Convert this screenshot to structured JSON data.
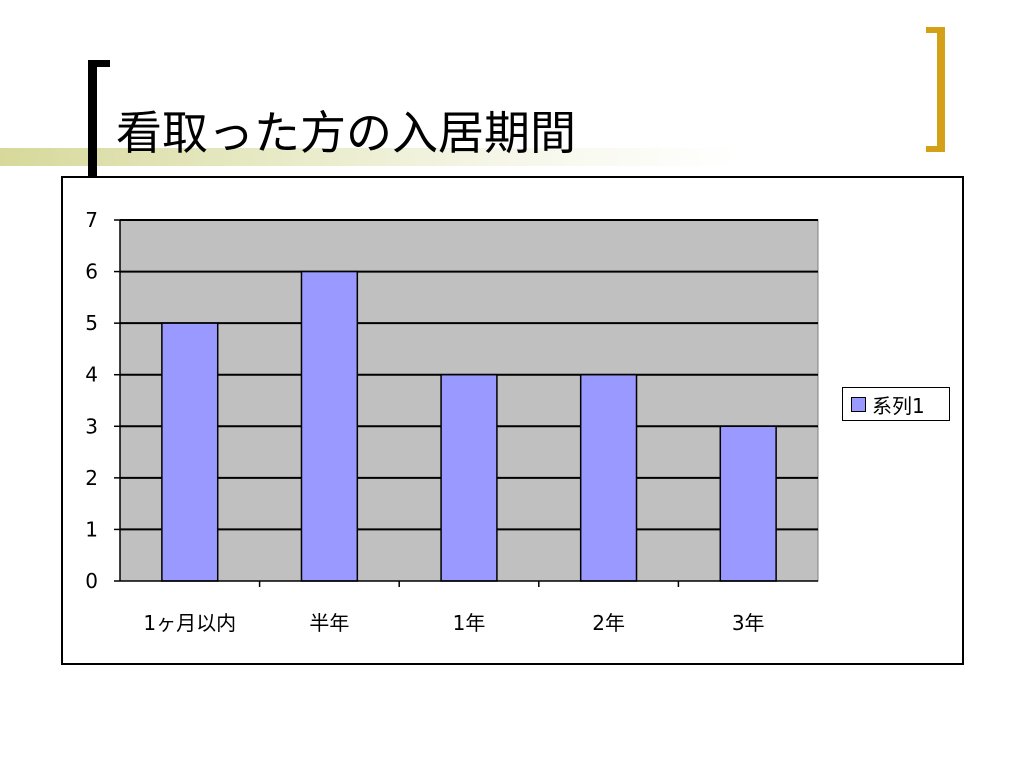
{
  "slide": {
    "title": "看取った方の入居期間"
  },
  "colors": {
    "bar_fill": "#9999ff",
    "plot_background": "#c0c0c0",
    "gridline": "#000000",
    "title_band": "#d6d99a",
    "right_bracket": "#d4a017"
  },
  "chart_data": {
    "type": "bar",
    "title": "",
    "xlabel": "",
    "ylabel": "",
    "categories": [
      "1ヶ月以内",
      "半年",
      "1年",
      "2年",
      "3年"
    ],
    "series": [
      {
        "name": "系列1",
        "values": [
          5,
          6,
          4,
          4,
          3
        ]
      }
    ],
    "ylim": [
      0,
      7
    ],
    "yticks": [
      "0",
      "1",
      "2",
      "3",
      "4",
      "5",
      "6",
      "7"
    ],
    "grid": true,
    "legend_position": "right"
  }
}
